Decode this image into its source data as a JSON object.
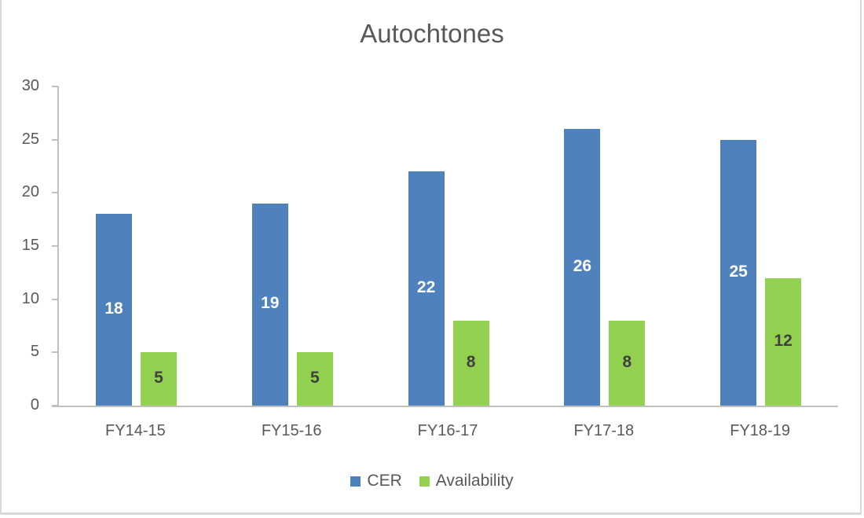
{
  "chart_data": {
    "type": "bar",
    "title": "Autochtones",
    "categories": [
      "FY14-15",
      "FY15-16",
      "FY16-17",
      "FY17-18",
      "FY18-19"
    ],
    "series": [
      {
        "name": "CER",
        "color": "#4f81bd",
        "values": [
          18,
          19,
          22,
          26,
          25
        ]
      },
      {
        "name": "Availability",
        "color": "#92d050",
        "values": [
          5,
          5,
          8,
          8,
          12
        ]
      }
    ],
    "xlabel": "",
    "ylabel": "",
    "ylim": [
      0,
      30
    ],
    "yticks": [
      0,
      5,
      10,
      15,
      20,
      25,
      30
    ],
    "grid": false,
    "legend_position": "bottom",
    "data_labels": true
  }
}
